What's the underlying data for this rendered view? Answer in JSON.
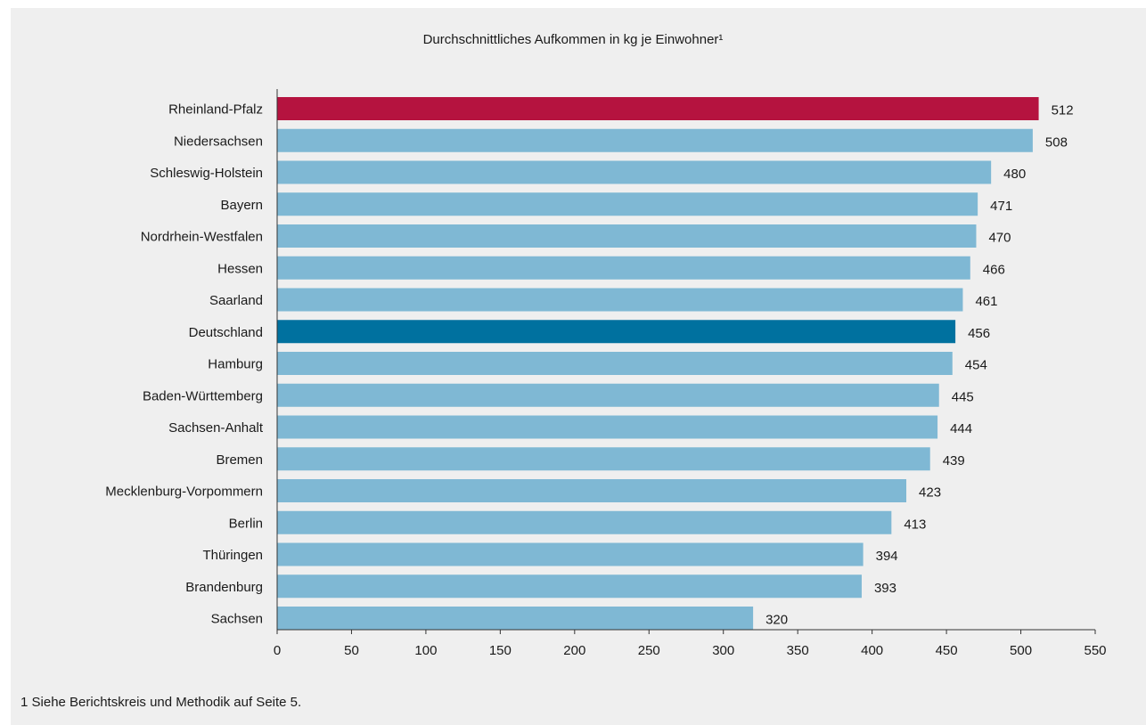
{
  "chart_data": {
    "type": "bar",
    "orientation": "horizontal",
    "title": "Durchschnittliches Aufkommen in kg je Einwohner¹",
    "categories": [
      "Rheinland-Pfalz",
      "Niedersachsen",
      "Schleswig-Holstein",
      "Bayern",
      "Nordrhein-Westfalen",
      "Hessen",
      "Saarland",
      "Deutschland",
      "Hamburg",
      "Baden-Württemberg",
      "Sachsen-Anhalt",
      "Bremen",
      "Mecklenburg-Vorpommern",
      "Berlin",
      "Thüringen",
      "Brandenburg",
      "Sachsen"
    ],
    "values": [
      512,
      508,
      480,
      471,
      470,
      466,
      461,
      456,
      454,
      445,
      444,
      439,
      423,
      413,
      394,
      393,
      320
    ],
    "data_labels": [
      "512",
      "508",
      "480",
      "471",
      "470",
      "466",
      "461",
      "456",
      "454",
      "445",
      "444",
      "439",
      "423",
      "413",
      "394",
      "393",
      "320"
    ],
    "xlim": [
      0,
      550
    ],
    "x_ticks": [
      0,
      50,
      100,
      150,
      200,
      250,
      300,
      350,
      400,
      450,
      500,
      550
    ],
    "x_tick_labels": [
      "0",
      "50",
      "100",
      "150",
      "200",
      "250",
      "300",
      "350",
      "400",
      "450",
      "500",
      "550"
    ],
    "grid": false,
    "legend": "none",
    "colors": {
      "default": "#7fb8d4",
      "highlight": "#b5133f",
      "reference": "#00719f",
      "panel_background": "#efefef"
    },
    "highlight_category": "Rheinland-Pfalz",
    "reference_category": "Deutschland"
  },
  "footnote": "1 Siehe Berichtskreis und Methodik auf Seite 5."
}
